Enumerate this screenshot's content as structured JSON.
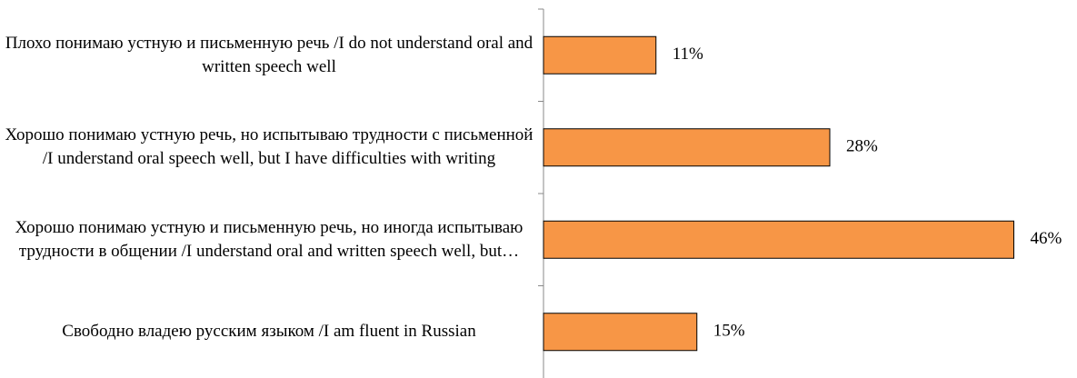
{
  "chart_data": {
    "type": "barh",
    "categories": [
      "Плохо понимаю устную и письменную речь /I do not understand oral and written speech well",
      "Хорошо понимаю устную речь, но испытываю трудности с письменной /I understand oral speech well, but I have difficulties with writing",
      "Хорошо понимаю устную и письменную речь, но иногда испытываю трудности в общении /I understand oral and written speech well, but…",
      "Свободно владею русским языком /I am fluent in Russian"
    ],
    "values": [
      11,
      28,
      46,
      15
    ],
    "value_labels": [
      "11%",
      "28%",
      "46%",
      "15%"
    ],
    "color": "#f79646"
  }
}
